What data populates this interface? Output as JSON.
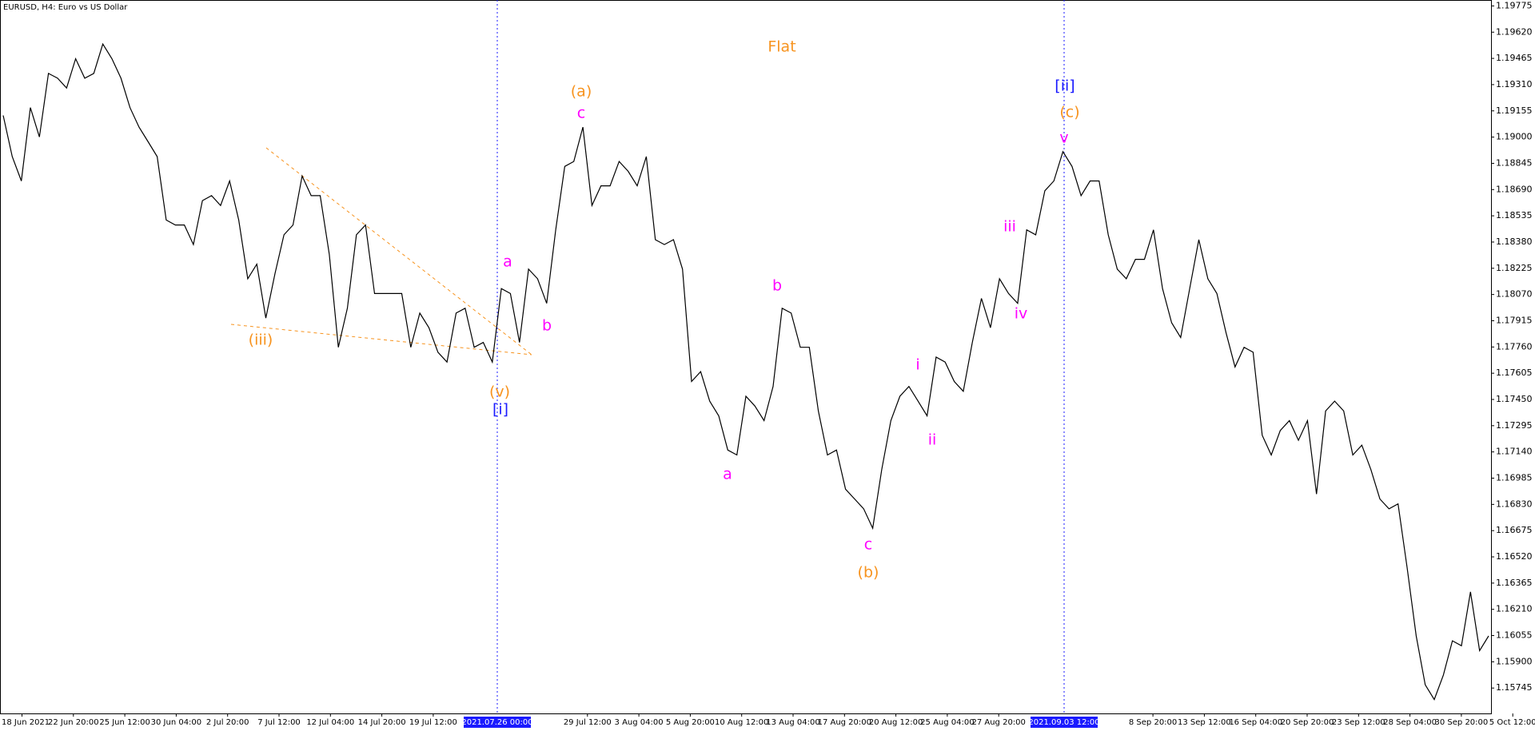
{
  "chart_data": {
    "type": "line",
    "title": "EURUSD, H4:  Euro vs US Dollar",
    "color": "#000000",
    "values": [
      1.19128,
      1.18885,
      1.18741,
      1.19174,
      1.19001,
      1.19376,
      1.19348,
      1.1929,
      1.19463,
      1.19348,
      1.19376,
      1.1955,
      1.19463,
      1.19348,
      1.19174,
      1.19059,
      1.18972,
      1.18885,
      1.1851,
      1.18481,
      1.18481,
      1.18365,
      1.18625,
      1.18654,
      1.18596,
      1.18741,
      1.1851,
      1.18163,
      1.18249,
      1.17931,
      1.18192,
      1.18423,
      1.18481,
      1.1877,
      1.18654,
      1.18654,
      1.18307,
      1.17758,
      1.17989,
      1.18423,
      1.18481,
      1.18076,
      1.18076,
      1.18076,
      1.18076,
      1.17758,
      1.1796,
      1.17874,
      1.17729,
      1.17671,
      1.1796,
      1.17989,
      1.17758,
      1.17787,
      1.17671,
      1.18105,
      1.18076,
      1.17787,
      1.1822,
      1.18163,
      1.18018,
      1.18452,
      1.18827,
      1.18856,
      1.19059,
      1.18596,
      1.18712,
      1.18712,
      1.18856,
      1.18798,
      1.18712,
      1.18885,
      1.18394,
      1.18365,
      1.18394,
      1.1822,
      1.17556,
      1.17614,
      1.1744,
      1.17353,
      1.17151,
      1.17122,
      1.17469,
      1.17411,
      1.17325,
      1.17527,
      1.17989,
      1.1796,
      1.17758,
      1.17758,
      1.17382,
      1.17122,
      1.17151,
      1.1692,
      1.16862,
      1.16804,
      1.16689,
      1.17036,
      1.17325,
      1.17469,
      1.17527,
      1.1744,
      1.17353,
      1.177,
      1.17671,
      1.17556,
      1.17498,
      1.17787,
      1.18047,
      1.17874,
      1.18163,
      1.18076,
      1.18018,
      1.18452,
      1.18423,
      1.18683,
      1.18741,
      1.18914,
      1.18827,
      1.18654,
      1.18741,
      1.18741,
      1.18423,
      1.1822,
      1.18163,
      1.18278,
      1.18278,
      1.18452,
      1.18105,
      1.17903,
      1.17816,
      1.18105,
      1.18394,
      1.18163,
      1.18076,
      1.17845,
      1.17642,
      1.17758,
      1.17729,
      1.17238,
      1.17122,
      1.17267,
      1.17325,
      1.17209,
      1.17325,
      1.16891,
      1.17382,
      1.1744,
      1.17382,
      1.17122,
      1.1718,
      1.17036,
      1.16862,
      1.16804,
      1.16833,
      1.16458,
      1.16053,
      1.15764,
      1.15677,
      1.15822,
      1.16024,
      1.15995,
      1.16313,
      1.15966,
      1.16053
    ],
    "ylim": [
      1.15595,
      1.1981
    ],
    "yticks": [
      {
        "value": 1.15745,
        "label": "1.15745"
      },
      {
        "value": 1.159,
        "label": "1.15900"
      },
      {
        "value": 1.16055,
        "label": "1.16055"
      },
      {
        "value": 1.1621,
        "label": "1.16210"
      },
      {
        "value": 1.16365,
        "label": "1.16365"
      },
      {
        "value": 1.1652,
        "label": "1.16520"
      },
      {
        "value": 1.16675,
        "label": "1.16675"
      },
      {
        "value": 1.1683,
        "label": "1.16830"
      },
      {
        "value": 1.16985,
        "label": "1.16985"
      },
      {
        "value": 1.1714,
        "label": "1.17140"
      },
      {
        "value": 1.17295,
        "label": "1.17295"
      },
      {
        "value": 1.1745,
        "label": "1.17450"
      },
      {
        "value": 1.17605,
        "label": "1.17605"
      },
      {
        "value": 1.1776,
        "label": "1.17760"
      },
      {
        "value": 1.17915,
        "label": "1.17915"
      },
      {
        "value": 1.1807,
        "label": "1.18070"
      },
      {
        "value": 1.18225,
        "label": "1.18225"
      },
      {
        "value": 1.1838,
        "label": "1.18380"
      },
      {
        "value": 1.18535,
        "label": "1.18535"
      },
      {
        "value": 1.1869,
        "label": "1.18690"
      },
      {
        "value": 1.18845,
        "label": "1.18845"
      },
      {
        "value": 1.19,
        "label": "1.19000"
      },
      {
        "value": 1.19155,
        "label": "1.19155"
      },
      {
        "value": 1.1931,
        "label": "1.19310"
      },
      {
        "value": 1.19465,
        "label": "1.19465"
      },
      {
        "value": 1.1962,
        "label": "1.19620"
      },
      {
        "value": 1.19775,
        "label": "1.19775"
      }
    ],
    "xticks": [
      "18 Jun 2021",
      "22 Jun 20:00",
      "25 Jun 12:00",
      "30 Jun 04:00",
      "2 Jul 20:00",
      "7 Jul 12:00",
      "12 Jul 04:00",
      "14 Jul 20:00",
      "19 Jul 12:00",
      null,
      null,
      "29 Jul 12:00",
      "3 Aug 04:00",
      "5 Aug 20:00",
      "10 Aug 12:00",
      "13 Aug 04:00",
      "17 Aug 20:00",
      "20 Aug 12:00",
      "25 Aug 04:00",
      "27 Aug 20:00",
      null,
      null,
      "8 Sep 20:00",
      "13 Sep 12:00",
      "16 Sep 04:00",
      "20 Sep 20:00",
      "23 Sep 12:00",
      "28 Sep 04:00",
      "30 Sep 20:00",
      "5 Oct 12:00"
    ],
    "vlines": [
      "2021.07.26 00:00",
      "2021.09.03 12:00"
    ],
    "annotations": [
      "Flat",
      "(a)",
      "c",
      "(iii)",
      "(v)",
      "[i]",
      "a",
      "b",
      "a",
      "b",
      "c",
      "(b)",
      "i",
      "ii",
      "iii",
      "iv",
      "v",
      "(c)",
      "[ii]"
    ]
  }
}
